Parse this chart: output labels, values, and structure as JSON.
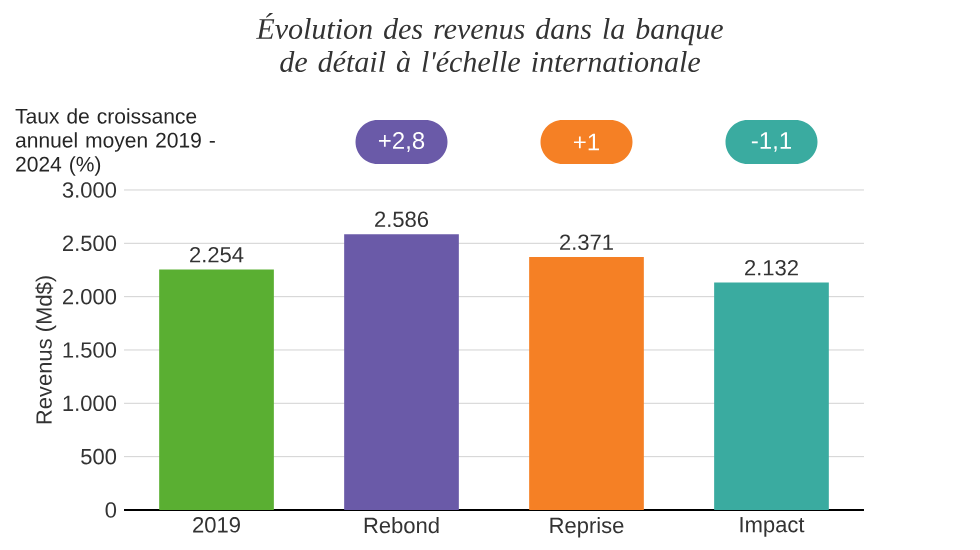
{
  "chart_data": {
    "type": "bar",
    "title": "Évolution des revenus dans la banque de détail à l'échelle internationale",
    "ylabel": "Revenus (Md$)",
    "categories": [
      "2019",
      "Rebond",
      "Reprise",
      "Impact"
    ],
    "values": [
      2254,
      2586,
      2371,
      2132
    ],
    "value_labels": [
      "2.254",
      "2.586",
      "2.371",
      "2.132"
    ],
    "colors": [
      "#5aaf32",
      "#6a5aa8",
      "#f58025",
      "#3aaba0"
    ],
    "annotations": [
      "Taux de croissance annuel moyen 2019 - 2024 (%)",
      "+2,8",
      "+1",
      "-1,1"
    ],
    "ylim": [
      0,
      3000
    ],
    "yticks": [
      0,
      500,
      {
        "value": 1000,
        "label": "1.000"
      },
      {
        "value": 1500,
        "label": "1.500"
      },
      {
        "value": 2000,
        "label": "2.000"
      },
      {
        "value": 2500,
        "label": "2.500"
      },
      {
        "value": 3000,
        "label": "3.000"
      }
    ],
    "grid": "y"
  }
}
